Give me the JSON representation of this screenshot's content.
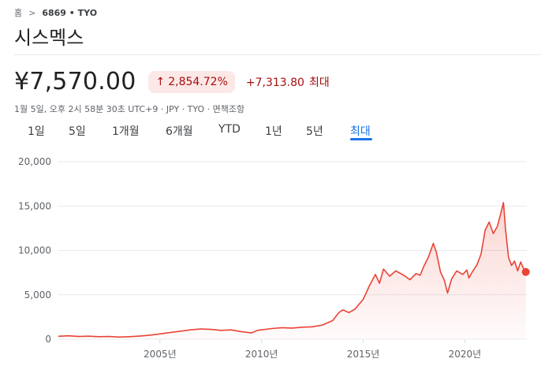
{
  "breadcrumb": {
    "home": "홈",
    "separator": ">",
    "ticker": "6869 • TYO"
  },
  "company_name": "시스멕스",
  "quote": {
    "price": "¥7,570.00",
    "change_percent": "2,854.72%",
    "change_arrow": "↑",
    "change_value": "+7,313.80",
    "period_label": "최대"
  },
  "meta": "1월 5일, 오후 2시 58분 30초 UTC+9 · JPY · TYO · 면책조항",
  "tabs": [
    {
      "label": "1일"
    },
    {
      "label": "5일"
    },
    {
      "label": "1개월"
    },
    {
      "label": "6개월"
    },
    {
      "label": "YTD"
    },
    {
      "label": "1년"
    },
    {
      "label": "5년"
    },
    {
      "label": "최대",
      "active": true
    }
  ],
  "colors": {
    "line": "#ea4335",
    "negative": "#a50e0e",
    "accent": "#1a73e8"
  },
  "chart_data": {
    "type": "area",
    "yticks": [
      "20,000",
      "15,000",
      "10,000",
      "5,000",
      "0"
    ],
    "ytick_values": [
      20000,
      15000,
      10000,
      5000,
      0
    ],
    "xticks": [
      "2005년",
      "2010년",
      "2015년",
      "2020년"
    ],
    "xtick_values": [
      2005,
      2010,
      2015,
      2020
    ],
    "xlim": [
      2000.0,
      2023.05
    ],
    "ylim": [
      0,
      20000
    ],
    "series": [
      {
        "values": [
          [
            2000.0,
            330
          ],
          [
            2000.5,
            380
          ],
          [
            2001.0,
            300
          ],
          [
            2001.5,
            340
          ],
          [
            2002.0,
            280
          ],
          [
            2002.5,
            300
          ],
          [
            2003.0,
            240
          ],
          [
            2003.5,
            280
          ],
          [
            2004.0,
            350
          ],
          [
            2004.5,
            450
          ],
          [
            2005.0,
            600
          ],
          [
            2005.5,
            750
          ],
          [
            2006.0,
            900
          ],
          [
            2006.5,
            1050
          ],
          [
            2007.0,
            1150
          ],
          [
            2007.5,
            1100
          ],
          [
            2008.0,
            1000
          ],
          [
            2008.5,
            1050
          ],
          [
            2009.0,
            850
          ],
          [
            2009.5,
            700
          ],
          [
            2009.8,
            1000
          ],
          [
            2010.5,
            1200
          ],
          [
            2011.0,
            1300
          ],
          [
            2011.5,
            1250
          ],
          [
            2012.0,
            1350
          ],
          [
            2012.5,
            1400
          ],
          [
            2013.0,
            1600
          ],
          [
            2013.5,
            2100
          ],
          [
            2013.8,
            3000
          ],
          [
            2014.0,
            3300
          ],
          [
            2014.3,
            3000
          ],
          [
            2014.6,
            3400
          ],
          [
            2015.0,
            4500
          ],
          [
            2015.3,
            6000
          ],
          [
            2015.6,
            7300
          ],
          [
            2015.8,
            6300
          ],
          [
            2016.0,
            7900
          ],
          [
            2016.3,
            7100
          ],
          [
            2016.6,
            7700
          ],
          [
            2017.0,
            7200
          ],
          [
            2017.3,
            6700
          ],
          [
            2017.6,
            7400
          ],
          [
            2017.8,
            7200
          ],
          [
            2018.0,
            8300
          ],
          [
            2018.2,
            9200
          ],
          [
            2018.45,
            10800
          ],
          [
            2018.6,
            9800
          ],
          [
            2018.8,
            7600
          ],
          [
            2019.0,
            6600
          ],
          [
            2019.15,
            5200
          ],
          [
            2019.35,
            6800
          ],
          [
            2019.6,
            7700
          ],
          [
            2019.9,
            7300
          ],
          [
            2020.1,
            7800
          ],
          [
            2020.2,
            6900
          ],
          [
            2020.4,
            7700
          ],
          [
            2020.6,
            8400
          ],
          [
            2020.8,
            9600
          ],
          [
            2021.0,
            12300
          ],
          [
            2021.2,
            13200
          ],
          [
            2021.4,
            11900
          ],
          [
            2021.6,
            12700
          ],
          [
            2021.75,
            14000
          ],
          [
            2021.9,
            15400
          ],
          [
            2022.0,
            12500
          ],
          [
            2022.15,
            9200
          ],
          [
            2022.3,
            8300
          ],
          [
            2022.45,
            8800
          ],
          [
            2022.6,
            7700
          ],
          [
            2022.75,
            8700
          ],
          [
            2022.9,
            7900
          ],
          [
            2023.0,
            7570
          ]
        ]
      }
    ],
    "last_value": 7570,
    "grid": "horizontal"
  }
}
